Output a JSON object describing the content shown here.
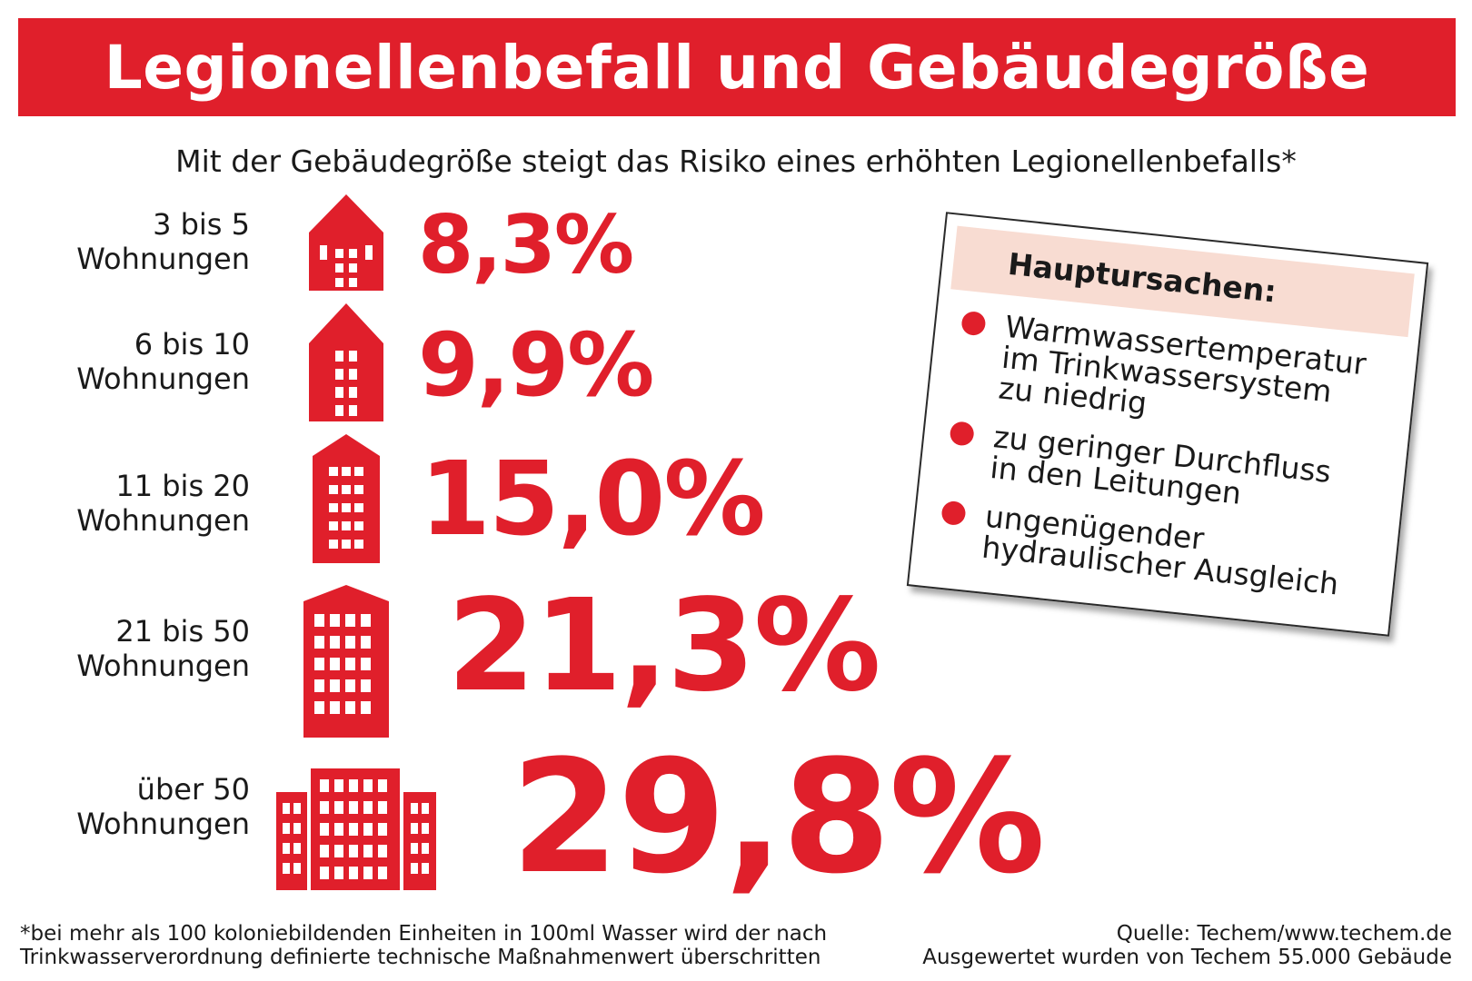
{
  "title": "Legionellenbefall und Gebäudegröße",
  "subtitle": "Mit der Gebäudegröße steigt das Risiko eines erhöhten Legionellenbefalls*",
  "accent_color": "#e01f2b",
  "chart_data": {
    "type": "table",
    "categories": [
      "3 bis 5 Wohnungen",
      "6 bis 10 Wohnungen",
      "11 bis 20 Wohnungen",
      "21 bis 50 Wohnungen",
      "über 50 Wohnungen"
    ],
    "values": [
      8.3,
      9.9,
      15.0,
      21.3,
      29.8
    ],
    "rows": [
      {
        "label_line1": "3 bis 5",
        "label_line2": "Wohnungen",
        "value_text": "8,3%",
        "icon": "small-house-icon"
      },
      {
        "label_line1": "6 bis 10",
        "label_line2": "Wohnungen",
        "value_text": "9,9%",
        "icon": "house-icon"
      },
      {
        "label_line1": "11 bis 20",
        "label_line2": "Wohnungen",
        "value_text": "15,0%",
        "icon": "tall-house-icon"
      },
      {
        "label_line1": "21 bis 50",
        "label_line2": "Wohnungen",
        "value_text": "21,3%",
        "icon": "apartment-building-icon"
      },
      {
        "label_line1": "über 50",
        "label_line2": "Wohnungen",
        "value_text": "29,8%",
        "icon": "building-complex-icon"
      }
    ]
  },
  "causes_card": {
    "title": "Hauptursachen:",
    "items": [
      {
        "lines": [
          "Warmwassertemperatur",
          "im Trinkwassersystem",
          "zu niedrig"
        ]
      },
      {
        "lines": [
          "zu geringer Durchfluss",
          "in den Leitungen"
        ]
      },
      {
        "lines": [
          "ungenügender",
          "hydraulischer Ausgleich"
        ]
      }
    ]
  },
  "footnote": {
    "line1": "*bei mehr als 100 koloniebildenden Einheiten in 100ml Wasser wird der nach",
    "line2": "Trinkwasserverordnung definierte technische Maßnahmenwert überschritten"
  },
  "source": {
    "line1": "Quelle: Techem/www.techem.de",
    "line2": "Ausgewertet wurden von Techem 55.000 Gebäude"
  }
}
